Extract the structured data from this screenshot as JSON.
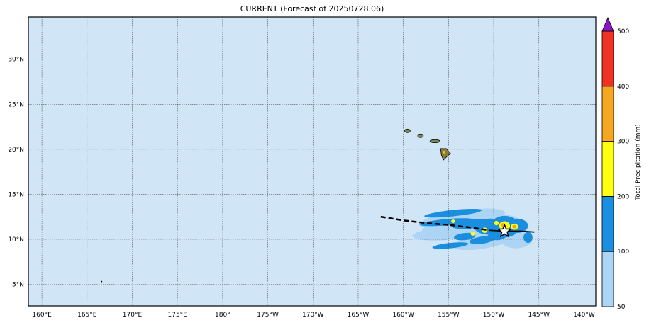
{
  "title": "CURRENT (Forecast of 20250728.06)",
  "map": {
    "ocean_color": "#d0e6f6",
    "grid": true,
    "lon_ticks": [
      "160°E",
      "165°E",
      "170°E",
      "175°E",
      "180°",
      "175°W",
      "170°W",
      "165°W",
      "160°W",
      "155°W",
      "150°W",
      "145°W",
      "140°W"
    ],
    "lat_ticks": [
      "30°N",
      "25°N",
      "20°N",
      "15°N",
      "10°N",
      "5°N"
    ],
    "lon_values": [
      160,
      165,
      170,
      175,
      180,
      185,
      190,
      195,
      200,
      205,
      210,
      215,
      220
    ],
    "lat_values": [
      30,
      25,
      20,
      15,
      10,
      5
    ],
    "lon_range": [
      158.5,
      221.3
    ],
    "lat_range": [
      2.6,
      34.7
    ],
    "track": [
      {
        "lon": 197.5,
        "lat": 12.5
      },
      {
        "lon": 200,
        "lat": 12.1
      },
      {
        "lon": 202.5,
        "lat": 11.8
      },
      {
        "lon": 205,
        "lat": 11.6
      },
      {
        "lon": 207.5,
        "lat": 11.3
      },
      {
        "lon": 209.5,
        "lat": 11.0
      },
      {
        "lon": 211.2,
        "lat": 10.9
      },
      {
        "lon": 213,
        "lat": 10.9
      },
      {
        "lon": 214.5,
        "lat": 10.8
      }
    ],
    "storm_position": {
      "lon": 211.2,
      "lat": 10.9
    },
    "islands": [
      {
        "name": "Kauai",
        "lon": 200.45,
        "lat": 22.05
      },
      {
        "name": "Oahu",
        "lon": 201.9,
        "lat": 21.5
      },
      {
        "name": "Molokai-Maui",
        "lon": 203.5,
        "lat": 20.9
      },
      {
        "name": "Hawaii",
        "lon": 204.6,
        "lat": 19.6
      },
      {
        "name": "Wake",
        "lon": 166.6,
        "lat": 5.3
      }
    ]
  },
  "colorbar": {
    "label": "Total Precipitation (mm)",
    "ticks": [
      "50",
      "100",
      "200",
      "300",
      "400",
      "500"
    ],
    "colors": [
      "#acd4f4",
      "#1a8fe0",
      "#ffff10",
      "#f5a623",
      "#ee3322"
    ],
    "extend_color": "#8a14c8"
  }
}
